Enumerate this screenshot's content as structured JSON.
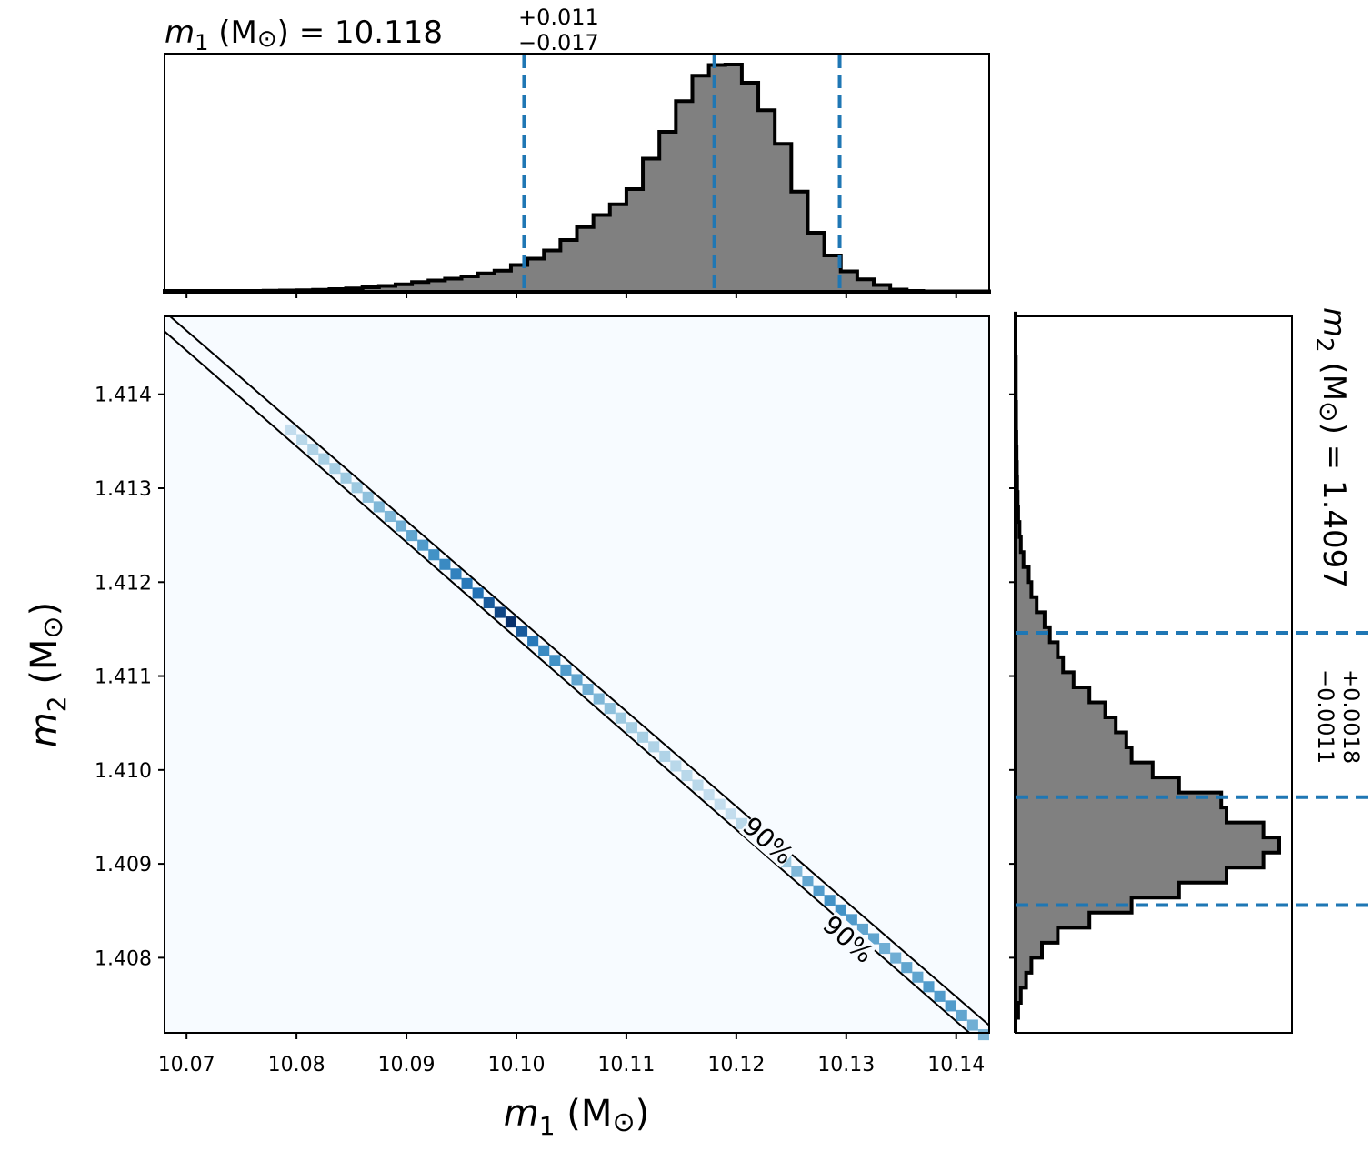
{
  "chart_data": [
    {
      "id": "m1-marginal",
      "type": "histogram",
      "title": {
        "var": "m",
        "sub": "1",
        "unit": " (M",
        "unit_sym": "⊙",
        "unit_close": ") = ",
        "value": "10.118",
        "plus": "+0.011",
        "minus": "−0.017"
      },
      "xlim": [
        10.068,
        10.143
      ],
      "bin_edges_start": 10.068,
      "bin_width": 0.0015,
      "counts": [
        0.004,
        0.004,
        0.004,
        0.004,
        0.004,
        0.004,
        0.005,
        0.006,
        0.007,
        0.009,
        0.012,
        0.015,
        0.02,
        0.026,
        0.033,
        0.043,
        0.05,
        0.058,
        0.068,
        0.081,
        0.093,
        0.118,
        0.146,
        0.182,
        0.228,
        0.285,
        0.338,
        0.385,
        0.452,
        0.586,
        0.704,
        0.839,
        0.951,
        0.998,
        1.0,
        0.92,
        0.799,
        0.651,
        0.441,
        0.26,
        0.16,
        0.09,
        0.055,
        0.03,
        0.01,
        0.004,
        0.002,
        0.002,
        0.002,
        0.002
      ],
      "quantile_lines": [
        10.1007,
        10.118,
        10.1294
      ],
      "line_color": "#1f77b4"
    },
    {
      "id": "joint",
      "type": "heatmap",
      "xlabel": {
        "var": "m",
        "sub": "1",
        "rest": " (M",
        "sym": "⊙",
        "close": ")"
      },
      "ylabel": {
        "var": "m",
        "sub": "2",
        "rest": " (M",
        "sym": "⊙",
        "close": ")"
      },
      "xlim": [
        10.068,
        10.143
      ],
      "ylim": [
        1.4072,
        1.41483
      ],
      "x_ticks": [
        "10.07",
        "10.08",
        "10.09",
        "10.10",
        "10.11",
        "10.12",
        "10.13",
        "10.14"
      ],
      "y_ticks": [
        "1.408",
        "1.409",
        "1.410",
        "1.411",
        "1.412",
        "1.413",
        "1.414"
      ],
      "background_color": "#f7fbff",
      "diagonal": {
        "x0": 10.0795,
        "y0": 1.41362,
        "x1": 10.1425,
        "y1": 1.40718,
        "step_x": 0.001
      },
      "intensities": [
        0.15,
        0.2,
        0.25,
        0.3,
        0.3,
        0.35,
        0.35,
        0.4,
        0.45,
        0.45,
        0.5,
        0.55,
        0.6,
        0.65,
        0.7,
        0.75,
        0.8,
        0.85,
        0.9,
        0.95,
        1.0,
        0.9,
        0.8,
        0.7,
        0.65,
        0.6,
        0.55,
        0.5,
        0.45,
        0.4,
        0.35,
        0.3,
        0.3,
        0.25,
        0.25,
        0.2,
        0.2,
        0.2,
        0.15,
        0.15,
        0.15,
        0.2,
        0.2,
        0.25,
        0.3,
        0.35,
        0.45,
        0.55,
        0.6,
        0.65,
        0.65,
        0.6,
        0.55,
        0.55,
        0.5,
        0.5,
        0.55,
        0.55,
        0.6,
        0.6,
        0.6,
        0.55,
        0.5,
        0.45
      ],
      "contours": [
        {
          "x0": 10.0685,
          "y0": 1.41483,
          "x1": 10.143,
          "y1": 1.40728
        },
        {
          "x0": 10.068,
          "y0": 1.41467,
          "x1": 10.1412,
          "y1": 1.4072
        }
      ],
      "contour_labels": [
        {
          "text": "90%",
          "x": 10.1229,
          "y": 1.40925
        },
        {
          "text": "90%",
          "x": 10.1302,
          "y": 1.4082
        }
      ]
    },
    {
      "id": "m2-marginal",
      "type": "histogram",
      "orientation": "horizontal",
      "title": {
        "var": "m",
        "sub": "2",
        "unit": " (M",
        "unit_sym": "⊙",
        "unit_close": ") = ",
        "value": "1.4097",
        "plus": "+0.0018",
        "minus": "−0.0011"
      },
      "ylim": [
        1.4072,
        1.41483
      ],
      "bin_edges_start": 1.4072,
      "bin_width": 0.00016,
      "counts": [
        0.0,
        0.01,
        0.02,
        0.04,
        0.06,
        0.1,
        0.16,
        0.28,
        0.44,
        0.62,
        0.8,
        0.94,
        1.0,
        0.94,
        0.8,
        0.78,
        0.62,
        0.52,
        0.44,
        0.42,
        0.38,
        0.34,
        0.28,
        0.22,
        0.18,
        0.16,
        0.13,
        0.11,
        0.08,
        0.06,
        0.05,
        0.03,
        0.02,
        0.015,
        0.01,
        0.008,
        0.006,
        0.005,
        0.004,
        0.003,
        0.002,
        0.002,
        0.001,
        0.001,
        0.001,
        0.0,
        0.0,
        0.0
      ],
      "quantile_lines": [
        1.40856,
        1.40971,
        1.41146
      ],
      "line_color": "#1f77b4"
    }
  ]
}
